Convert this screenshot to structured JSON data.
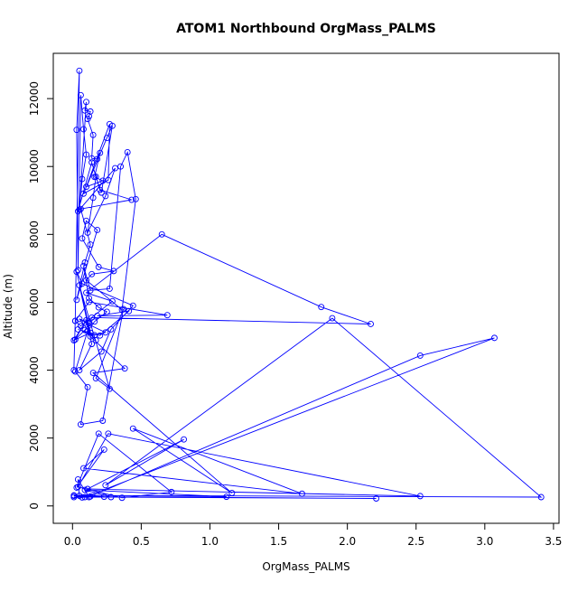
{
  "chart_data": {
    "type": "scatter",
    "title": "ATOM1 Northbound OrgMass_PALMS",
    "xlabel": "OrgMass_PALMS",
    "ylabel": "Altitude (m)",
    "xlim": [
      -0.14,
      3.54
    ],
    "ylim": [
      -512,
      13334
    ],
    "x_ticks": [
      "0.0",
      "0.5",
      "1.0",
      "1.5",
      "2.0",
      "2.5",
      "3.0",
      "3.5"
    ],
    "y_ticks": [
      "0",
      "2000",
      "4000",
      "6000",
      "8000",
      "10000",
      "12000"
    ],
    "grid": false,
    "legend": "none",
    "series": [
      {
        "name": "",
        "color": "#0000FF",
        "mode": "lines+markers",
        "x": [
          0.01,
          0.02,
          0.05,
          0.03,
          0.04,
          0.06,
          0.08,
          0.1,
          0.07,
          0.05,
          0.1,
          0.09,
          0.13,
          0.12,
          0.11,
          0.15,
          0.14,
          0.18,
          0.2,
          0.16,
          0.22,
          0.1,
          0.27,
          0.26,
          0.08,
          0.25,
          0.29,
          0.21,
          0.17,
          0.15,
          0.11,
          0.24,
          0.31,
          0.04,
          0.14,
          0.2,
          0.43,
          0.06,
          0.13,
          0.09,
          0.03,
          0.18,
          0.1,
          0.07,
          0.19,
          0.3,
          0.14,
          0.1,
          0.36,
          0.46,
          0.4,
          0.35,
          0.27,
          0.13,
          0.08,
          0.12,
          0.19,
          0.25,
          0.16,
          0.11,
          0.17,
          0.05,
          0.12,
          0.09,
          0.02,
          0.1,
          0.14,
          0.05,
          0.21,
          0.28,
          0.44,
          0.07,
          0.03,
          0.13,
          0.01,
          0.09,
          0.24,
          0.16,
          0.04,
          0.2,
          0.41,
          0.18,
          0.69,
          0.12,
          0.02,
          0.06,
          0.29,
          0.1,
          0.65,
          1.81,
          2.17,
          0.14,
          0.02,
          0.11,
          0.06,
          0.22,
          0.37,
          0.17,
          0.27,
          0.05,
          0.13,
          0.38,
          0.15,
          1.16,
          0.44,
          1.67,
          0.08,
          0.23,
          0.03,
          0.19,
          0.72,
          0.36,
          0.04,
          0.26,
          2.53,
          0.11,
          0.81,
          0.24,
          1.89,
          3.41,
          0.01,
          0.07,
          0.09,
          3.07,
          2.53,
          0.13,
          0.01,
          1.12,
          0.09,
          0.28,
          2.21,
          0.23,
          0.05,
          0.04,
          0.12,
          0.01
        ],
        "y": [
          4000,
          5450,
          12820,
          11080,
          6950,
          12100,
          11100,
          10350,
          9630,
          8730,
          11900,
          11650,
          11620,
          11480,
          11400,
          10930,
          10240,
          10220,
          10400,
          9690,
          9580,
          9400,
          11250,
          9600,
          9200,
          10840,
          11200,
          9230,
          9700,
          9080,
          8050,
          9130,
          9950,
          8680,
          10120,
          9310,
          9020,
          8750,
          7700,
          7170,
          6070,
          8130,
          8400,
          7880,
          7040,
          6920,
          6830,
          6650,
          5780,
          9040,
          10420,
          10000,
          6400,
          6350,
          7070,
          6120,
          5850,
          5720,
          5430,
          5140,
          4880,
          5510,
          5380,
          5180,
          4900,
          5470,
          4770,
          4000,
          4550,
          5200,
          5900,
          6550,
          6900,
          5100,
          4880,
          5400,
          5110,
          5030,
          5200,
          5020,
          5740,
          5600,
          5620,
          6010,
          5450,
          5300,
          6030,
          6280,
          8000,
          5860,
          5360,
          5550,
          3960,
          3500,
          2400,
          2510,
          5800,
          3760,
          3450,
          6500,
          4990,
          4050,
          3920,
          380,
          2280,
          360,
          1110,
          1660,
          540,
          2130,
          410,
          240,
          560,
          2130,
          290,
          500,
          1960,
          610,
          5530,
          260,
          310,
          250,
          260,
          4950,
          4430,
          280,
          260,
          270,
          470,
          260,
          220,
          270,
          300,
          780,
          260,
          300
        ]
      }
    ]
  }
}
